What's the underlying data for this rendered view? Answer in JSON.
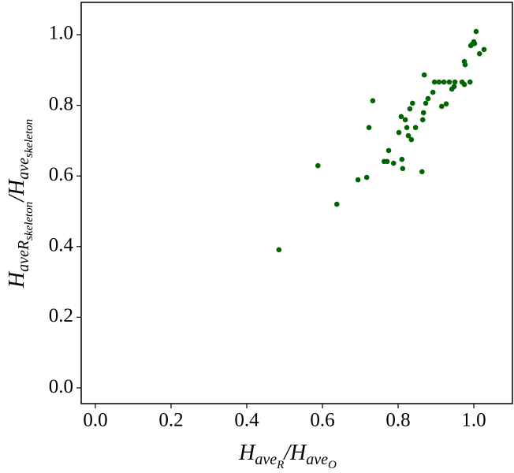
{
  "chart_data": {
    "type": "scatter",
    "xlabel": [
      {
        "base": "H"
      },
      {
        "sub": "ave"
      },
      {
        "subsub": "R"
      },
      {
        "base": "/H"
      },
      {
        "sub": "ave"
      },
      {
        "subsub": "O"
      }
    ],
    "ylabel": [
      {
        "base": "H"
      },
      {
        "sub": "aveR"
      },
      {
        "subsub": "skeleton"
      },
      {
        "base": "/H"
      },
      {
        "sub": "ave"
      },
      {
        "subsub": "skeleton"
      }
    ],
    "xlim": [
      -0.0375,
      1.102
    ],
    "ylim": [
      -0.0446,
      1.0915
    ],
    "xticks": [
      {
        "value": 0,
        "label": "0.0"
      },
      0.2,
      0.4,
      0.6,
      0.8,
      {
        "value": 1,
        "label": "1.0"
      }
    ],
    "yticks": [
      {
        "value": 0,
        "label": "0.0"
      },
      0.2,
      0.4,
      0.6,
      0.8,
      {
        "value": 1,
        "label": "1.0"
      }
    ],
    "color": "#006400",
    "x": [
      0.485,
      0.588,
      0.638,
      0.694,
      0.717,
      0.723,
      0.733,
      0.763,
      0.771,
      0.775,
      0.788,
      0.802,
      0.808,
      0.81,
      0.812,
      0.819,
      0.823,
      0.827,
      0.831,
      0.835,
      0.838,
      0.846,
      0.863,
      0.865,
      0.867,
      0.869,
      0.873,
      0.879,
      0.892,
      0.896,
      0.908,
      0.915,
      0.921,
      0.927,
      0.935,
      0.942,
      0.948,
      0.95,
      0.969,
      0.975,
      0.975,
      0.977,
      0.99,
      0.992,
      0.996,
      1.002,
      1.0,
      1.006,
      1.015,
      1.027
    ],
    "y": [
      0.391,
      0.629,
      0.52,
      0.589,
      0.596,
      0.737,
      0.813,
      0.641,
      0.641,
      0.672,
      0.636,
      0.723,
      0.768,
      0.647,
      0.621,
      0.759,
      0.737,
      0.714,
      0.79,
      0.703,
      0.806,
      0.737,
      0.612,
      0.759,
      0.779,
      0.886,
      0.806,
      0.819,
      0.837,
      0.866,
      0.866,
      0.797,
      0.866,
      0.804,
      0.866,
      0.846,
      0.853,
      0.866,
      0.866,
      0.859,
      0.924,
      0.915,
      0.866,
      0.969,
      0.973,
      0.975,
      0.98,
      1.009,
      0.946,
      0.958
    ]
  }
}
